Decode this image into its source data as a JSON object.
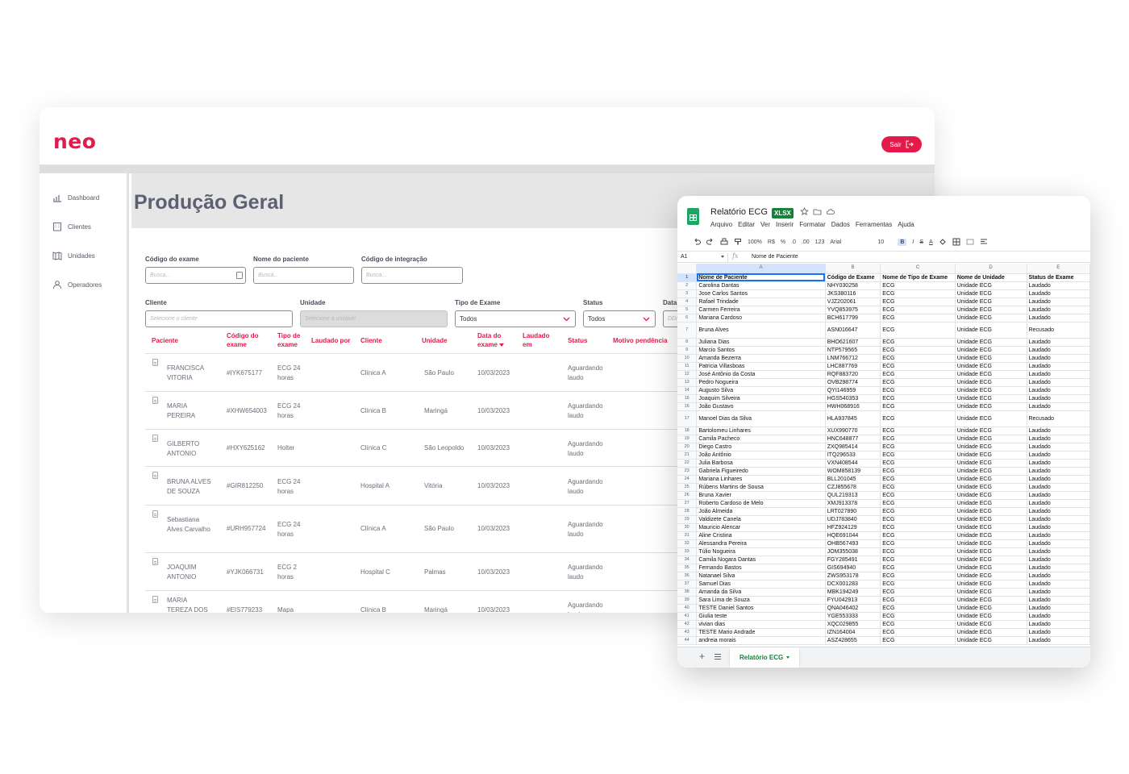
{
  "app": {
    "logo": "neo",
    "logout_label": "Sair",
    "page_title": "Produção Geral",
    "sidebar": [
      {
        "label": "Dashboard",
        "icon": "chart-icon"
      },
      {
        "label": "Clientes",
        "icon": "building-icon"
      },
      {
        "label": "Unidades",
        "icon": "map-icon"
      },
      {
        "label": "Operadores",
        "icon": "user-icon"
      }
    ],
    "filters": {
      "codigo_exame": {
        "label": "Código do exame",
        "placeholder": "Busca..."
      },
      "nome_paciente": {
        "label": "Nome do paciente",
        "placeholder": "Busca..."
      },
      "codigo_integracao": {
        "label": "Código de integração",
        "placeholder": "Busca..."
      },
      "cliente": {
        "label": "Cliente",
        "placeholder": "Selecione o cliente"
      },
      "unidade": {
        "label": "Unidade",
        "placeholder": "Selecione a unidade"
      },
      "tipo_exame": {
        "label": "Tipo de Exame",
        "value": "Todos"
      },
      "status": {
        "label": "Status",
        "value": "Todos"
      },
      "data": {
        "label": "Data",
        "placeholder": "DD/"
      }
    },
    "table": {
      "headers": [
        "Paciente",
        "Código do exame",
        "Tipo de exame",
        "Laudado por",
        "Cliente",
        "Unidade",
        "Data do exame",
        "Laudado em",
        "Status",
        "Motivo pendência"
      ],
      "rows": [
        {
          "paciente": "FRANCISCA VITORIA",
          "codigo": "#IYK675177",
          "tipo": "ECG 24 horas",
          "cliente": "Clínica A",
          "unidade": "São Paulo",
          "data": "10/03/2023",
          "status": "Aguardando laudo"
        },
        {
          "paciente": "MARIA PEREIRA",
          "codigo": "#XHW654003",
          "tipo": "ECG 24 horas",
          "cliente": "Clínica B",
          "unidade": "Maringá",
          "data": "10/03/2023",
          "status": "Aguardando laudo"
        },
        {
          "paciente": "GILBERTO ANTONIO",
          "codigo": "#HXY625162",
          "tipo": "Holter",
          "cliente": "Clínica C",
          "unidade": "São Leopoldo",
          "data": "10/03/2023",
          "status": "Aguardando laudo"
        },
        {
          "paciente": "BRUNA ALVES DE SOUZA",
          "codigo": "#GIR812250",
          "tipo": "ECG 24 horas",
          "cliente": "Hospital A",
          "unidade": "Vitória",
          "data": "10/03/2023",
          "status": "Aguardando laudo"
        },
        {
          "paciente": "Sebastiana Alves Carvalho",
          "codigo": "#URH957724",
          "tipo": "ECG 24 horas",
          "cliente": "Clínica A",
          "unidade": "São Paulo",
          "data": "10/03/2023",
          "status": "Aguardando laudo"
        },
        {
          "paciente": "JOAQUIM ANTONIO",
          "codigo": "#YJK066731",
          "tipo": "ECG 2 horas",
          "cliente": "Hospital C",
          "unidade": "Palmas",
          "data": "10/03/2023",
          "status": "Aguardando laudo"
        },
        {
          "paciente": "MARIA TEREZA DOS SANTOS",
          "codigo": "#EIS779233",
          "tipo": "Mapa",
          "cliente": "Clínica B",
          "unidade": "Maringá",
          "data": "10/03/2023",
          "status": "Aguardando laudo"
        }
      ]
    }
  },
  "sheet": {
    "title": "Relatório ECG",
    "badge": "XLSX",
    "menu": [
      "Arquivo",
      "Editar",
      "Ver",
      "Inserir",
      "Formatar",
      "Dados",
      "Ferramentas",
      "Ajuda"
    ],
    "toolbar": {
      "zoom": "100%",
      "currency": "R$",
      "percent": "%",
      "dec_less": ".0",
      "dec_more": ".00",
      "format": "123",
      "font": "Arial",
      "size": "10",
      "bold": "B",
      "italic": "I",
      "strike": "S",
      "color": "A"
    },
    "cell_ref": "A1",
    "formula_value": "Nome de Paciente",
    "columns": [
      "A",
      "B",
      "C",
      "D",
      "E"
    ],
    "header_row": [
      "Nome de Paciente",
      "Código de Exame",
      "Nome de Tipo de Exame",
      "Nome de Unidade",
      "Status de Exame"
    ],
    "rows": [
      [
        "Carolina Dantas",
        "NHY030258",
        "Laudado"
      ],
      [
        "Jose Carlos Santos",
        "JKS380116",
        "Laudado"
      ],
      [
        "Rafael Trindade",
        "VJZ202061",
        "Laudado"
      ],
      [
        "Carmen Ferreira",
        "YVQ853975",
        "Laudado"
      ],
      [
        "Mariana Cardoso",
        "BCH617799",
        "Laudado"
      ],
      [
        "Bruna Alves",
        "ASN016647",
        "Recusado"
      ],
      [
        "Juliana Dias",
        "BHO621607",
        "Laudado"
      ],
      [
        "Marcio Santos",
        "NTP579565",
        "Laudado"
      ],
      [
        "Amanda Bezerra",
        "LNM766712",
        "Laudado"
      ],
      [
        "Patricia Villasboas",
        "LHC887769",
        "Laudado"
      ],
      [
        "José Antônio da Costa",
        "RQF883720",
        "Laudado"
      ],
      [
        "Pedro Nogueira",
        "OVB298774",
        "Laudado"
      ],
      [
        "Augusto Silva",
        "QYI146959",
        "Laudado"
      ],
      [
        "Joaquim Silveira",
        "HGS540353",
        "Laudado"
      ],
      [
        "João Gustavo",
        "HWH068916",
        "Laudado"
      ],
      [
        "Manoel Dias da Silva",
        "HLA937845",
        "Recusado"
      ],
      [
        "Bartolomeu Linhares",
        "XUX990770",
        "Laudado"
      ],
      [
        "Camila Pacheco",
        "HNC648877",
        "Laudado"
      ],
      [
        "Diego Castro",
        "ZXQ985414",
        "Laudado"
      ],
      [
        "João Antônio",
        "ITQ296533",
        "Laudado"
      ],
      [
        "Julia Barbosa",
        "VXN408544",
        "Laudado"
      ],
      [
        "Gabriela Figueiredo",
        "WOM858139",
        "Laudado"
      ],
      [
        "Mariana Linhares",
        "BLL201045",
        "Laudado"
      ],
      [
        "Rúbens Martins de Sousa",
        "CZJ855678",
        "Laudado"
      ],
      [
        "Bruna Xavier",
        "QUL219313",
        "Laudado"
      ],
      [
        "Roberto Cardoso de Melo",
        "XMJ913378",
        "Laudado"
      ],
      [
        "João Almeida",
        "LRT027890",
        "Laudado"
      ],
      [
        "Valdizete Canela",
        "UDJ783840",
        "Laudado"
      ],
      [
        "Mauricio Alencar",
        "HFZ924129",
        "Laudado"
      ],
      [
        "Aline Cristina",
        "HQE691044",
        "Laudado"
      ],
      [
        "Alessandra Pereira",
        "OHB567493",
        "Laudado"
      ],
      [
        "Túlio Nogueira",
        "JOM355038",
        "Laudado"
      ],
      [
        "Camila Nogara Dantas",
        "FGY285491",
        "Laudado"
      ],
      [
        "Fernando Bastos",
        "GIS694940",
        "Laudado"
      ],
      [
        "Natanael Silva",
        "ZWS953178",
        "Laudado"
      ],
      [
        "Samuel Dias",
        "DCX001283",
        "Laudado"
      ],
      [
        "Amanda da Silva",
        "MBK194249",
        "Laudado"
      ],
      [
        "Sara Lima de Souza",
        "FYU042913",
        "Laudado"
      ],
      [
        "TESTE Daniel Santos",
        "QNA046402",
        "Laudado"
      ],
      [
        "Giulia teste",
        "YGE553333",
        "Laudado"
      ],
      [
        "vivian dias",
        "XQC029855",
        "Laudado"
      ],
      [
        "TESTE Mario Andrade",
        "IZN164004",
        "Laudado"
      ],
      [
        "andreia morais",
        "ASZ428655",
        "Laudado"
      ]
    ],
    "exam_type": "ECG",
    "unit": "Unidade ECG",
    "tab_label": "Relatório ECG"
  }
}
